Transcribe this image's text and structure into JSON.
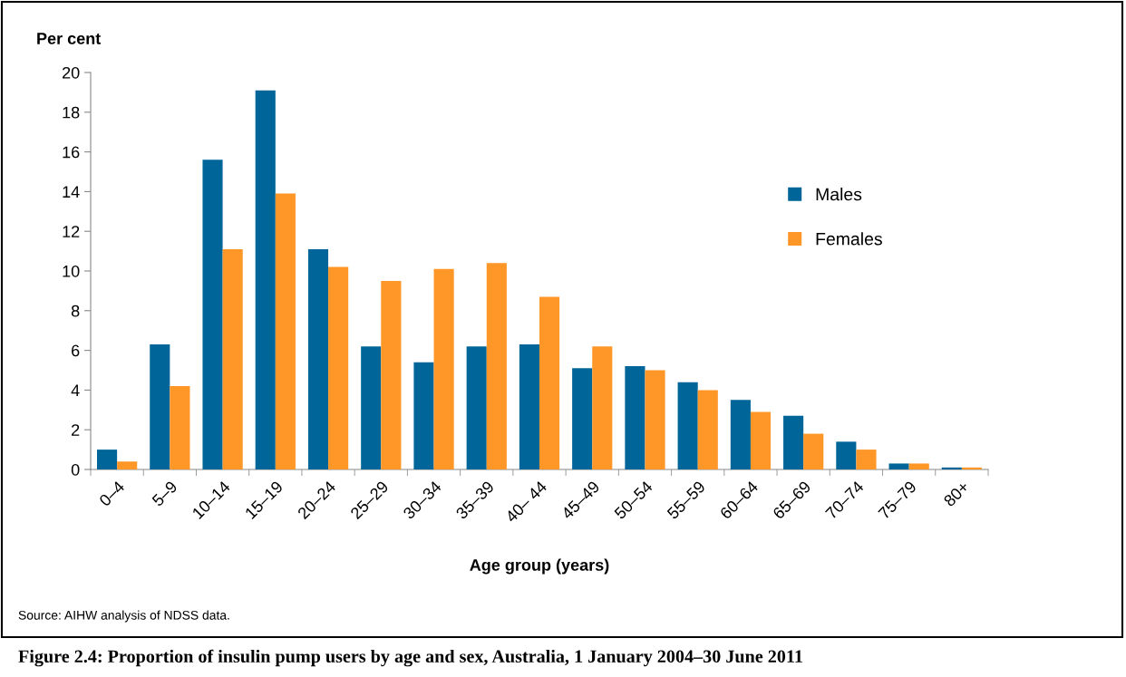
{
  "chart_data": {
    "type": "bar",
    "title": "Figure 2.4: Proportion of insulin pump users by age and sex, Australia, 1 January 2004–30 June 2011",
    "ylabel": "Per cent",
    "xlabel": "Age group (years)",
    "annotations": [
      "Source: AIHW analysis of NDSS data."
    ],
    "categories": [
      "0–4",
      "5–9",
      "10–14",
      "15–19",
      "20–24",
      "25–29",
      "30–34",
      "35–39",
      "40– 44",
      "45–49",
      "50–54",
      "55–59",
      "60–64",
      "65–69",
      "70–74",
      "75–79",
      "80+"
    ],
    "series": [
      {
        "name": "Males",
        "color": "#006699",
        "values": [
          1.0,
          6.3,
          15.6,
          19.1,
          11.1,
          6.2,
          5.4,
          6.2,
          6.3,
          5.1,
          5.2,
          4.4,
          3.5,
          2.7,
          1.4,
          0.3,
          0.1
        ]
      },
      {
        "name": "Females",
        "color": "#ff9628",
        "values": [
          0.4,
          4.2,
          11.1,
          13.9,
          10.2,
          9.5,
          10.1,
          10.4,
          8.7,
          6.2,
          5.0,
          4.0,
          2.9,
          1.8,
          1.0,
          0.3,
          0.1
        ]
      }
    ],
    "ylim": [
      0,
      20
    ],
    "yticks": [
      0,
      2,
      4,
      6,
      8,
      10,
      12,
      14,
      16,
      18,
      20
    ],
    "grid": false,
    "legend": "right"
  }
}
